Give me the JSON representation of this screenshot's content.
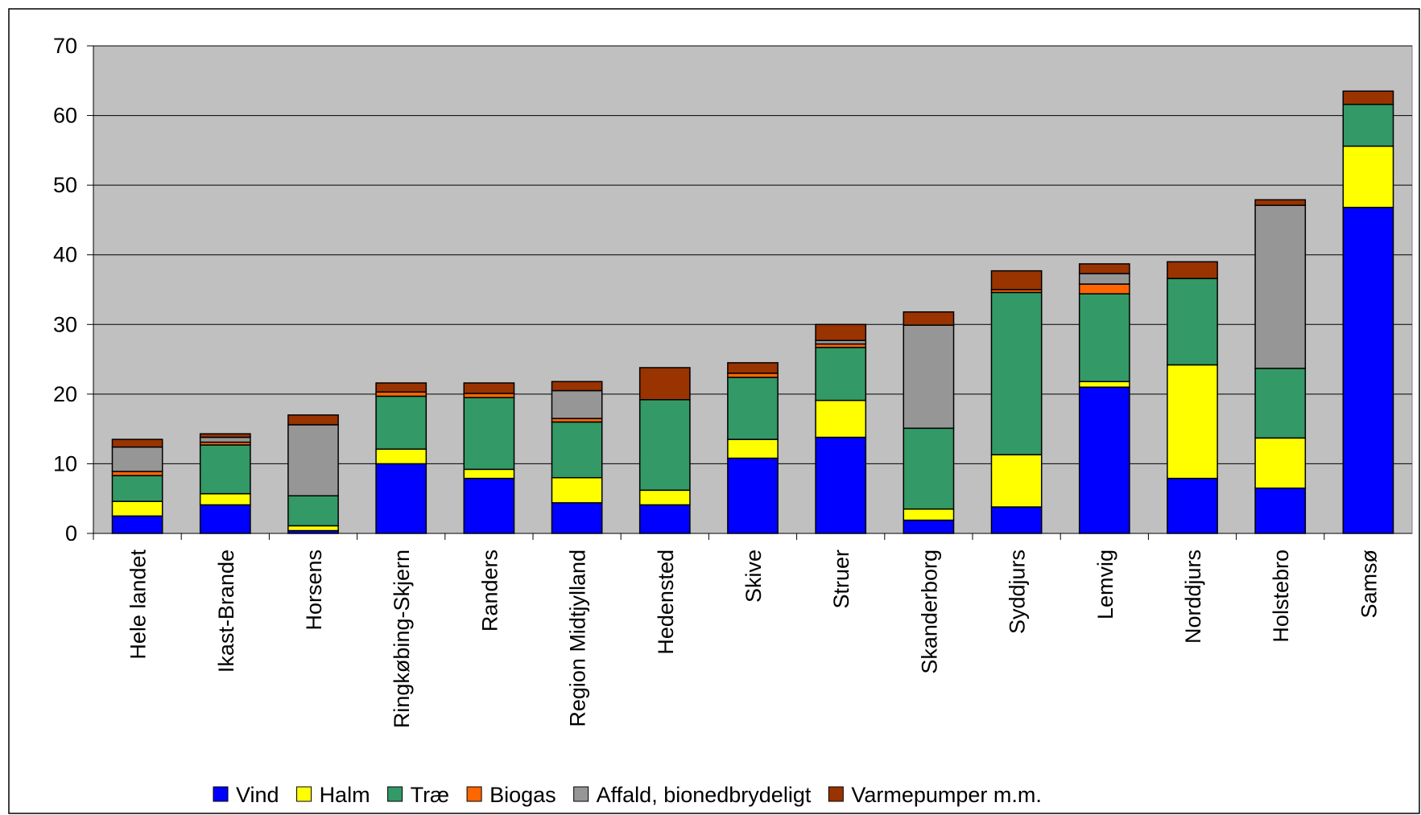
{
  "chart_data": {
    "type": "bar",
    "stacked": true,
    "categories": [
      "Hele landet",
      "Ikast-Brande",
      "Horsens",
      "Ringkøbing-Skjern",
      "Randers",
      "Region Midtjylland",
      "Hedensted",
      "Skive",
      "Struer",
      "Skanderborg",
      "Syddjurs",
      "Lemvig",
      "Norddjurs",
      "Holstebro",
      "Samsø"
    ],
    "series": [
      {
        "name": "Vind",
        "color": "#0000ff",
        "values": [
          2.5,
          4.1,
          0.4,
          10.0,
          7.9,
          4.4,
          4.1,
          10.8,
          13.8,
          1.9,
          3.8,
          21.0,
          7.9,
          6.5,
          46.8
        ]
      },
      {
        "name": "Halm",
        "color": "#ffff00",
        "values": [
          2.1,
          1.6,
          0.7,
          2.1,
          1.3,
          3.6,
          2.1,
          2.7,
          5.3,
          1.6,
          7.5,
          0.8,
          16.3,
          7.2,
          8.8
        ]
      },
      {
        "name": "Træ",
        "color": "#339966",
        "values": [
          3.7,
          7.0,
          4.3,
          7.6,
          10.3,
          8.0,
          13.0,
          8.9,
          7.6,
          11.6,
          23.3,
          12.6,
          12.4,
          10.0,
          6.0
        ]
      },
      {
        "name": "Biogas",
        "color": "#ff6600",
        "values": [
          0.6,
          0.4,
          0,
          0.6,
          0.6,
          0.5,
          0,
          0.6,
          0.5,
          0,
          0.4,
          1.4,
          0,
          0,
          0
        ]
      },
      {
        "name": "Affald, bionedbrydeligt",
        "color": "#969696",
        "values": [
          3.5,
          0.7,
          10.2,
          0,
          0,
          4.0,
          0,
          0,
          0.5,
          14.8,
          0,
          1.5,
          0,
          23.4,
          0
        ]
      },
      {
        "name": "Varmepumper m.m.",
        "color": "#993300",
        "values": [
          1.1,
          0.5,
          1.4,
          1.3,
          1.5,
          1.3,
          4.6,
          1.5,
          2.3,
          1.9,
          2.7,
          1.4,
          2.4,
          0.8,
          1.9
        ]
      }
    ],
    "ylim": [
      0,
      70
    ],
    "yticks": [
      0,
      10,
      20,
      30,
      40,
      50,
      60,
      70
    ],
    "grid": true,
    "legend": "bottom"
  }
}
